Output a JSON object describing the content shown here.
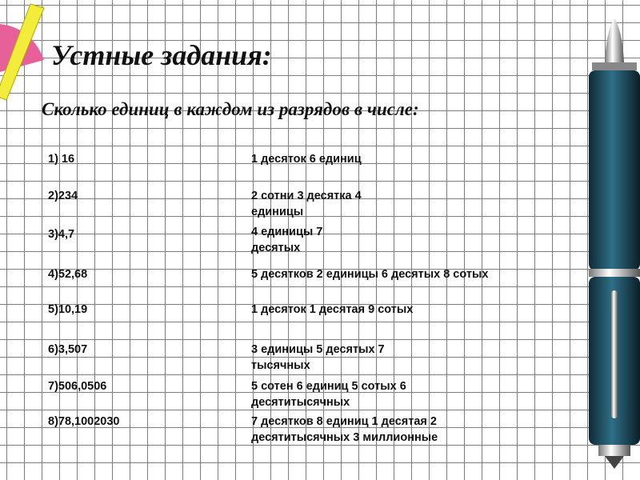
{
  "title": "Устные задания:",
  "subtitle": "Сколько единиц в каждом из разрядов в числе:",
  "items": [
    {
      "number": "1) 16",
      "answer": "1 десяток 6 единиц"
    },
    {
      "number": "2)234",
      "answer": "2 сотни 3 десятка 4 единицы"
    },
    {
      "number": "3)4,7",
      "answer": "4 единицы 7 десятых"
    },
    {
      "number": "4)52,68",
      "answer": "5 десятков 2 единицы 6 десятых 8 сотых"
    },
    {
      "number": "5)10,19",
      "answer": "1 десяток 1 десятая 9 сотых"
    },
    {
      "number": "6)3,507",
      "answer": "3 единицы 5 десятых 7 тысячных"
    },
    {
      "number": "7)506,0506",
      "answer": "5 сотен 6 единиц 5 сотых 6 десятитысячных"
    },
    {
      "number": "8)78,1002030",
      "answer": "7 десятков 8 единиц 1 десятая 2 десятитысячных 3 миллионные"
    }
  ],
  "colors": {
    "pen_body": "#1d4a5c",
    "ruler": "#f2ec3a",
    "protractor": "#e8609a"
  }
}
